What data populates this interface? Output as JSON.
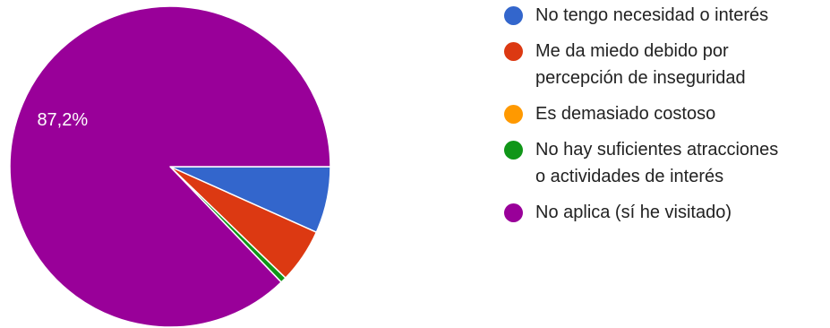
{
  "chart_data": {
    "type": "pie",
    "categories": [
      "No tengo necesidad o interés",
      "Me da miedo debido por percepción de inseguridad",
      "Es demasiado costoso",
      "No hay suficientes atracciones o actividades de interés",
      "No aplica (sí he visitado)"
    ],
    "values": [
      6.7,
      5.5,
      0.0,
      0.6,
      87.2
    ],
    "colors": [
      "#3366cc",
      "#dc3912",
      "#ff9900",
      "#109618",
      "#990099"
    ],
    "data_labels": [
      "",
      "",
      "",
      "",
      "87,2%"
    ],
    "legend_position": "right",
    "start_angle": "3 o'clock",
    "direction": "clockwise"
  }
}
